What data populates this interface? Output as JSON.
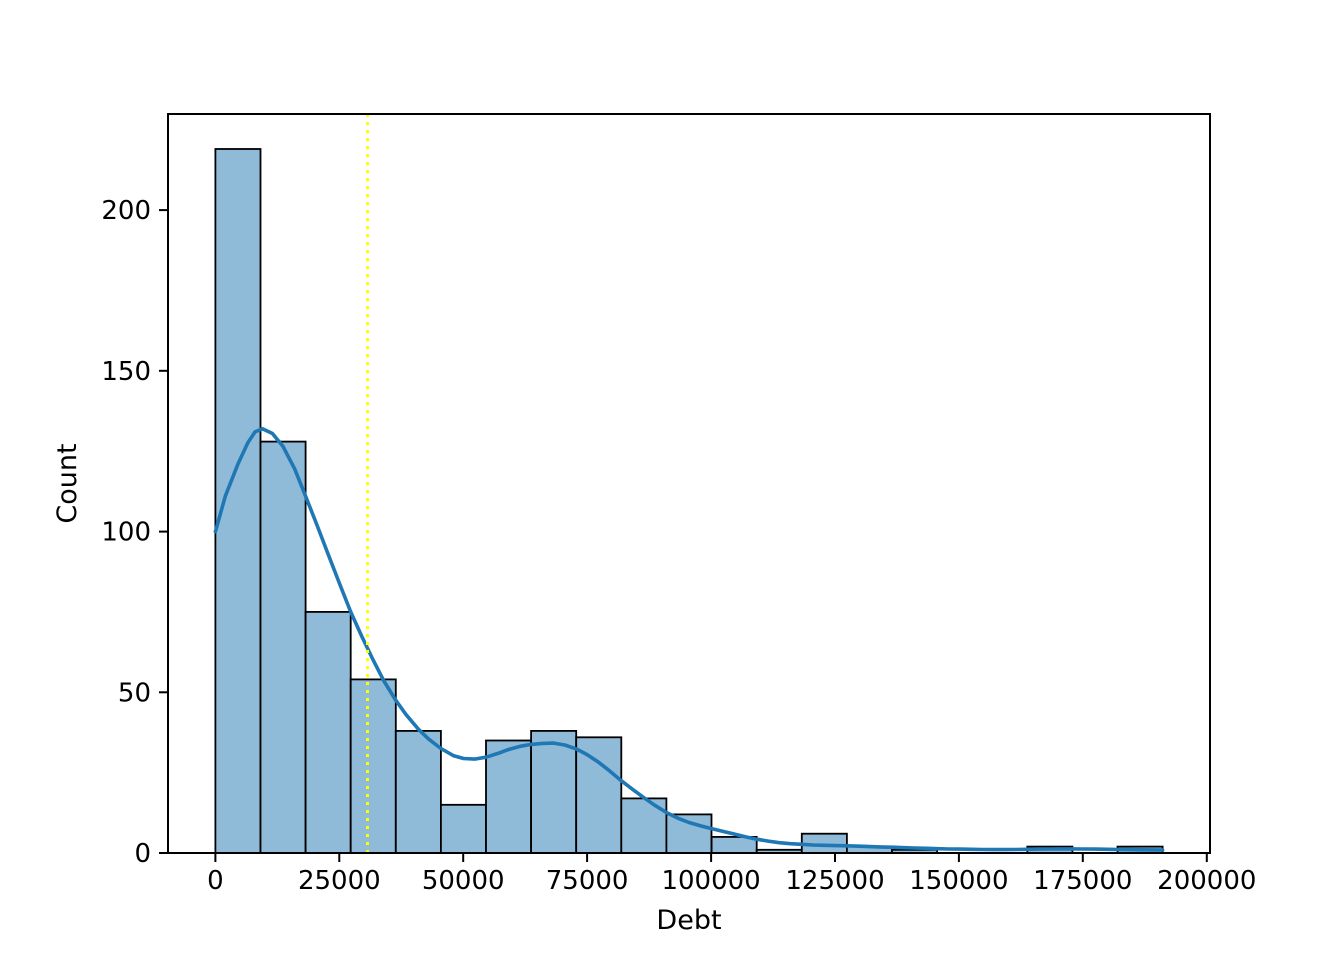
{
  "figure": {
    "background": "#ffffff"
  },
  "chart_data": {
    "type": "bar",
    "subtype": "histogram-with-kde",
    "title": "",
    "xlabel": "Debt",
    "ylabel": "Count",
    "xlim": [
      -9555,
      200655
    ],
    "ylim": [
      0,
      229.9
    ],
    "grid": false,
    "legend": "none",
    "x_ticks": [
      0,
      25000,
      50000,
      75000,
      100000,
      125000,
      150000,
      175000,
      200000
    ],
    "x_tick_labels": [
      "0",
      "25000",
      "50000",
      "75000",
      "100000",
      "125000",
      "150000",
      "175000",
      "200000"
    ],
    "y_ticks": [
      0,
      50,
      100,
      150,
      200
    ],
    "y_tick_labels": [
      "0",
      "50",
      "100",
      "150",
      "200"
    ],
    "histogram": {
      "bin_start": 0,
      "bin_width": 9100,
      "counts": [
        219,
        128,
        75,
        54,
        38,
        15,
        35,
        38,
        36,
        17,
        12,
        5,
        1,
        6,
        2,
        1,
        0,
        0,
        2,
        0,
        2
      ]
    },
    "kde_points": [
      [
        0,
        100
      ],
      [
        2000,
        111
      ],
      [
        4550,
        121
      ],
      [
        6500,
        127.5
      ],
      [
        8000,
        131
      ],
      [
        9500,
        132
      ],
      [
        11500,
        130.5
      ],
      [
        13650,
        126.5
      ],
      [
        16000,
        119.5
      ],
      [
        18200,
        111
      ],
      [
        20500,
        102
      ],
      [
        22750,
        93
      ],
      [
        25000,
        84
      ],
      [
        27300,
        75
      ],
      [
        29500,
        67.5
      ],
      [
        31850,
        60
      ],
      [
        34000,
        53.5
      ],
      [
        36400,
        47.5
      ],
      [
        38500,
        43
      ],
      [
        40950,
        38.5
      ],
      [
        43000,
        35.5
      ],
      [
        45500,
        32.5
      ],
      [
        48000,
        30.3
      ],
      [
        50050,
        29.4
      ],
      [
        52300,
        29.2
      ],
      [
        54600,
        29.8
      ],
      [
        57000,
        31
      ],
      [
        59150,
        32.2
      ],
      [
        61500,
        33.2
      ],
      [
        63700,
        33.8
      ],
      [
        66000,
        34.1
      ],
      [
        68250,
        34.2
      ],
      [
        70500,
        33.6
      ],
      [
        72800,
        32.4
      ],
      [
        75000,
        30.6
      ],
      [
        77350,
        28.2
      ],
      [
        79500,
        25.6
      ],
      [
        81900,
        22.5
      ],
      [
        84000,
        20
      ],
      [
        86450,
        17.2
      ],
      [
        88500,
        15
      ],
      [
        91000,
        12.6
      ],
      [
        93500,
        10.7
      ],
      [
        95550,
        9.5
      ],
      [
        98000,
        8.4
      ],
      [
        100100,
        7.6
      ],
      [
        102500,
        6.7
      ],
      [
        104650,
        5.9
      ],
      [
        107000,
        5
      ],
      [
        109200,
        4.3
      ],
      [
        111500,
        3.7
      ],
      [
        113750,
        3.2
      ],
      [
        116000,
        2.9
      ],
      [
        118300,
        2.7
      ],
      [
        120500,
        2.5
      ],
      [
        122850,
        2.4
      ],
      [
        125000,
        2.3
      ],
      [
        127400,
        2.25
      ],
      [
        130000,
        2.1
      ],
      [
        131950,
        2
      ],
      [
        134000,
        1.9
      ],
      [
        136500,
        1.8
      ],
      [
        139000,
        1.65
      ],
      [
        141050,
        1.55
      ],
      [
        143500,
        1.45
      ],
      [
        145600,
        1.35
      ],
      [
        148000,
        1.25
      ],
      [
        150150,
        1.2
      ],
      [
        152500,
        1.15
      ],
      [
        154700,
        1.1
      ],
      [
        157000,
        1.07
      ],
      [
        159250,
        1.07
      ],
      [
        161500,
        1.1
      ],
      [
        163800,
        1.15
      ],
      [
        166000,
        1.2
      ],
      [
        168350,
        1.25
      ],
      [
        170500,
        1.27
      ],
      [
        172900,
        1.27
      ],
      [
        175000,
        1.25
      ],
      [
        177450,
        1.2
      ],
      [
        180000,
        1.15
      ],
      [
        182000,
        1.1
      ],
      [
        184000,
        1.05
      ],
      [
        186550,
        1.0
      ],
      [
        189000,
        0.95
      ],
      [
        191100,
        0.9
      ]
    ],
    "vline": {
      "x": 30700,
      "style": "dotted"
    },
    "colors": {
      "bar_fill": "#8FBBD9",
      "bar_edge": "#000000",
      "kde_line": "#1f77b4",
      "vline": "#ffff00",
      "axis": "#000000",
      "text": "#000000"
    }
  }
}
